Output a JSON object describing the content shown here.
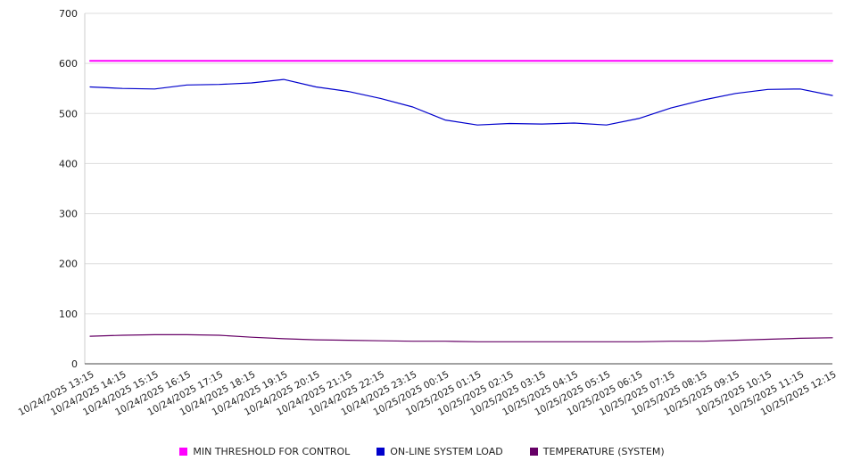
{
  "chart_data": {
    "type": "line",
    "title": "",
    "xlabel": "",
    "ylabel": "",
    "ylim": [
      0,
      700
    ],
    "ytick_step": 100,
    "grid": true,
    "legend_position": "bottom",
    "categories": [
      "10/24/2025 13:15",
      "10/24/2025 14:15",
      "10/24/2025 15:15",
      "10/24/2025 16:15",
      "10/24/2025 17:15",
      "10/24/2025 18:15",
      "10/24/2025 19:15",
      "10/24/2025 20:15",
      "10/24/2025 21:15",
      "10/24/2025 22:15",
      "10/24/2025 23:15",
      "10/25/2025 00:15",
      "10/25/2025 01:15",
      "10/25/2025 02:15",
      "10/25/2025 03:15",
      "10/25/2025 04:15",
      "10/25/2025 05:15",
      "10/25/2025 06:15",
      "10/25/2025 07:15",
      "10/25/2025 08:15",
      "10/25/2025 09:15",
      "10/25/2025 10:15",
      "10/25/2025 11:15",
      "10/25/2025 12:15"
    ],
    "series": [
      {
        "name": "MIN THRESHOLD FOR CONTROL",
        "color": "#ff00ff",
        "stroke_width": 2,
        "values": [
          605,
          605,
          605,
          605,
          605,
          605,
          605,
          605,
          605,
          605,
          605,
          605,
          605,
          605,
          605,
          605,
          605,
          605,
          605,
          605,
          605,
          605,
          605,
          605
        ]
      },
      {
        "name": "ON-LINE SYSTEM LOAD",
        "color": "#0000cc",
        "stroke_width": 1.2,
        "values": [
          553,
          550,
          549,
          557,
          558,
          561,
          568,
          553,
          544,
          530,
          513,
          487,
          477,
          480,
          479,
          481,
          477,
          490,
          511,
          527,
          540,
          548,
          549,
          536
        ]
      },
      {
        "name": "TEMPERATURE (SYSTEM)",
        "color": "#660066",
        "stroke_width": 1.2,
        "values": [
          55,
          57,
          58,
          58,
          57,
          53,
          50,
          48,
          47,
          46,
          45,
          45,
          44,
          44,
          44,
          44,
          44,
          44,
          45,
          45,
          47,
          49,
          51,
          52
        ]
      }
    ]
  }
}
